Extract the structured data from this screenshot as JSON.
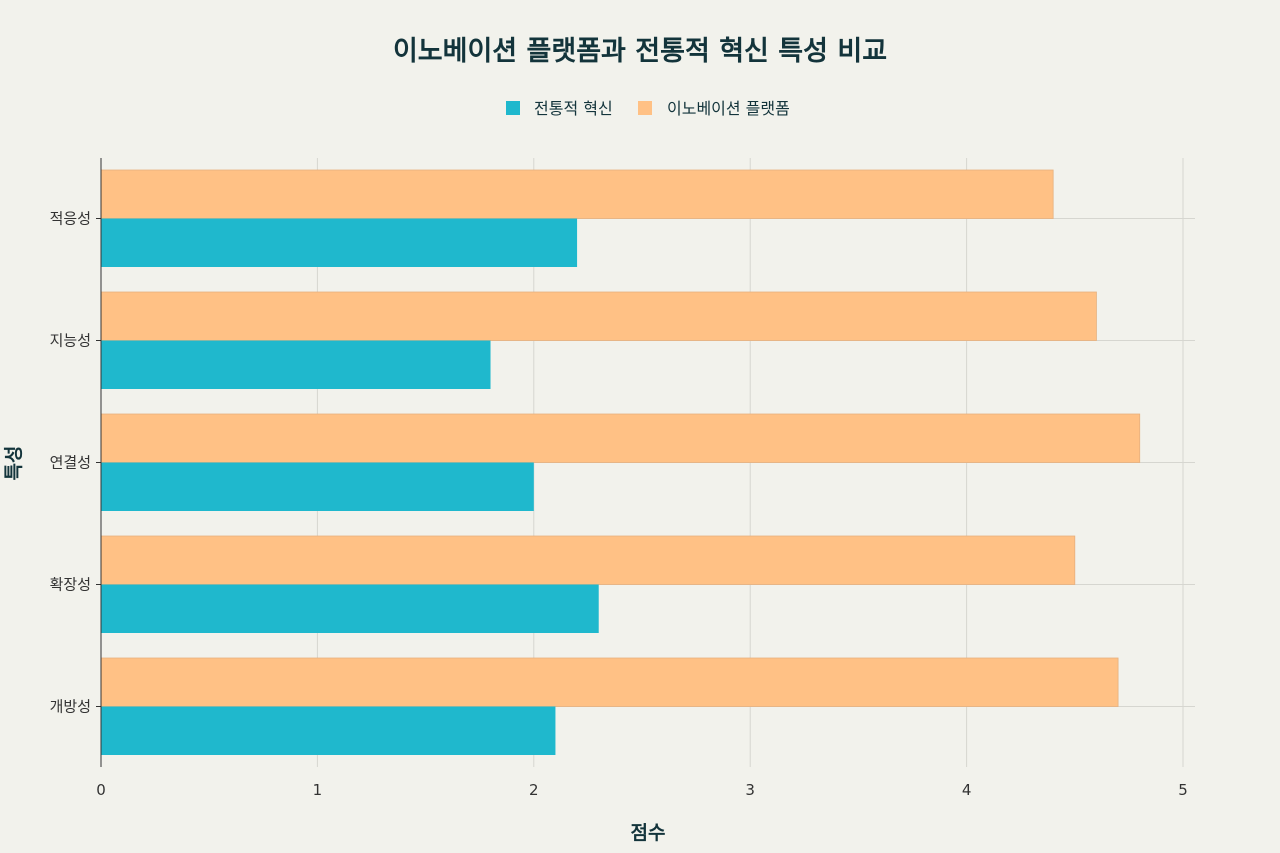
{
  "chart_data": {
    "type": "bar",
    "orientation": "horizontal",
    "title": "이노베이션 플랫폼과 전통적 혁신 특성 비교",
    "xlabel": "점수",
    "ylabel": "특성",
    "categories": [
      "적응성",
      "지능성",
      "연결성",
      "확장성",
      "개방성"
    ],
    "series": [
      {
        "name": "전통적 혁신",
        "color": "#1fb8cd",
        "values": [
          2.2,
          1.8,
          2.0,
          2.3,
          2.1
        ]
      },
      {
        "name": "이노베이션 플랫폼",
        "color": "#ffc185",
        "values": [
          4.4,
          4.6,
          4.8,
          4.5,
          4.7
        ]
      }
    ],
    "xlim": [
      0,
      5
    ],
    "xticks": [
      0,
      1,
      2,
      3,
      4,
      5
    ],
    "grid": true,
    "legend_position": "top"
  }
}
